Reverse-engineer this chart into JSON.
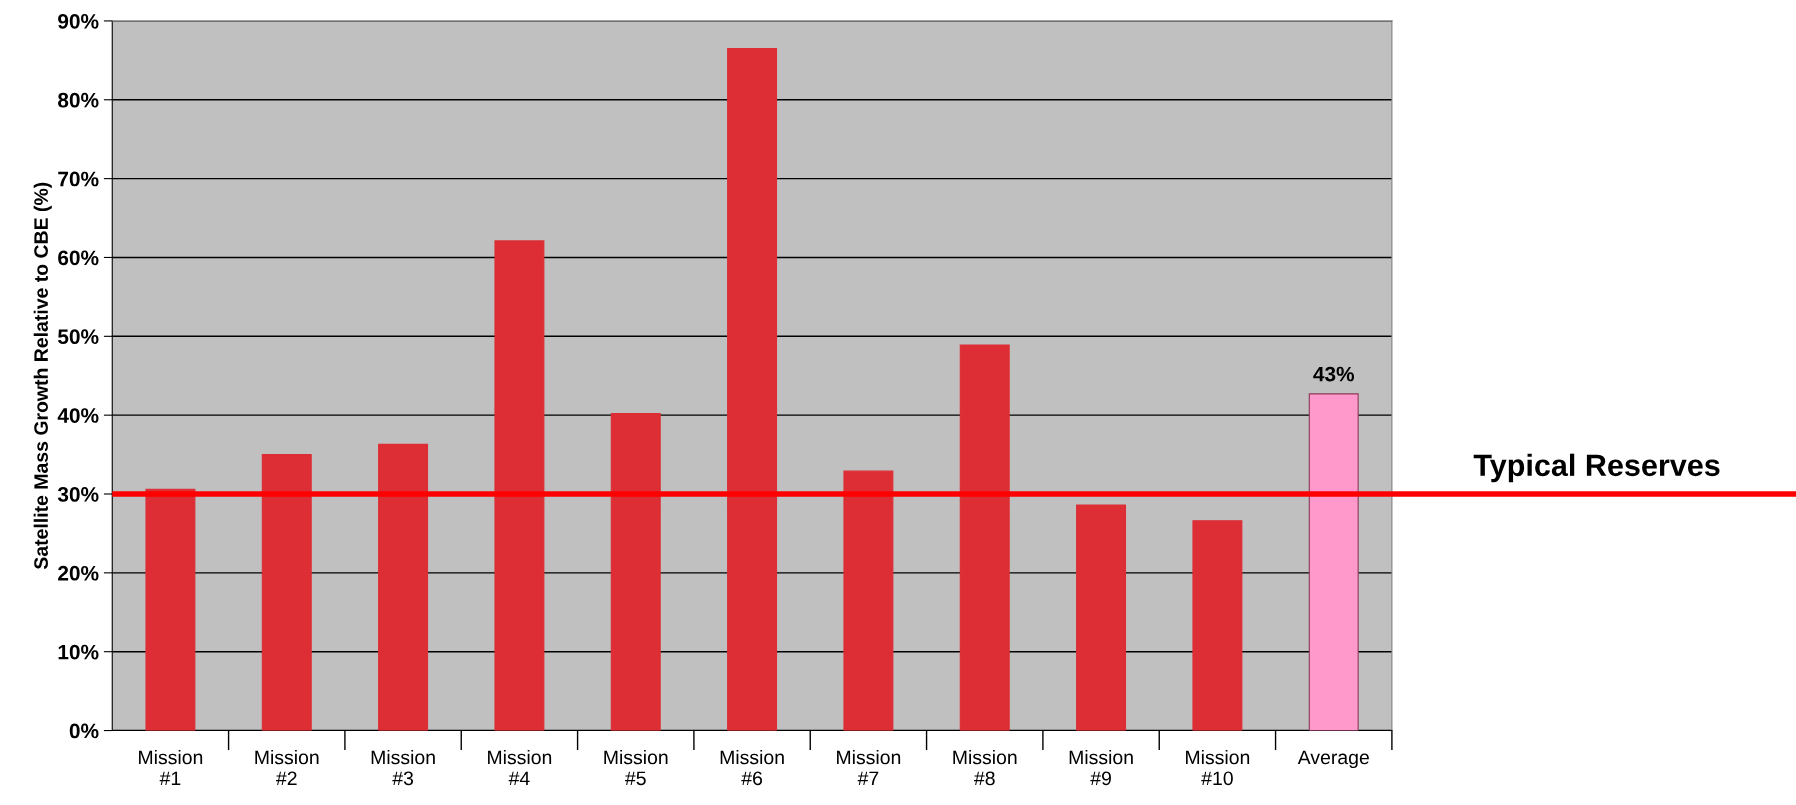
{
  "chart_data": {
    "type": "bar",
    "ylabel": "Satellite Mass Growth Relative to CBE (%)",
    "categories": [
      "Mission #1",
      "Mission #2",
      "Mission #3",
      "Mission #4",
      "Mission #5",
      "Mission #6",
      "Mission #7",
      "Mission #8",
      "Mission #9",
      "Mission #10",
      "Average"
    ],
    "values": [
      30.6,
      35.0,
      36.3,
      62.1,
      40.2,
      86.5,
      32.9,
      48.9,
      28.6,
      26.6,
      42.7
    ],
    "colors": [
      "#dc2e34",
      "#dc2e34",
      "#dc2e34",
      "#dc2e34",
      "#dc2e34",
      "#dc2e34",
      "#dc2e34",
      "#dc2e34",
      "#dc2e34",
      "#dc2e34",
      "#ff99cc"
    ],
    "value_labels": [
      null,
      null,
      null,
      null,
      null,
      null,
      null,
      null,
      null,
      null,
      "43%"
    ],
    "ylim": [
      0,
      90
    ],
    "yticks": [
      {
        "value": 0,
        "label": "0%"
      },
      {
        "value": 10,
        "label": "10%"
      },
      {
        "value": 20,
        "label": "20%"
      },
      {
        "value": 30,
        "label": "30%"
      },
      {
        "value": 40,
        "label": "40%"
      },
      {
        "value": 50,
        "label": "50%"
      },
      {
        "value": 60,
        "label": "60%"
      },
      {
        "value": 70,
        "label": "70%"
      },
      {
        "value": 80,
        "label": "80%"
      },
      {
        "value": 90,
        "label": "90%"
      }
    ],
    "ref_lines": [
      {
        "axis": "y",
        "value": 30,
        "label": "Typical Reserves",
        "color": "#ff0000"
      }
    ],
    "grid": "y",
    "legend": false
  }
}
